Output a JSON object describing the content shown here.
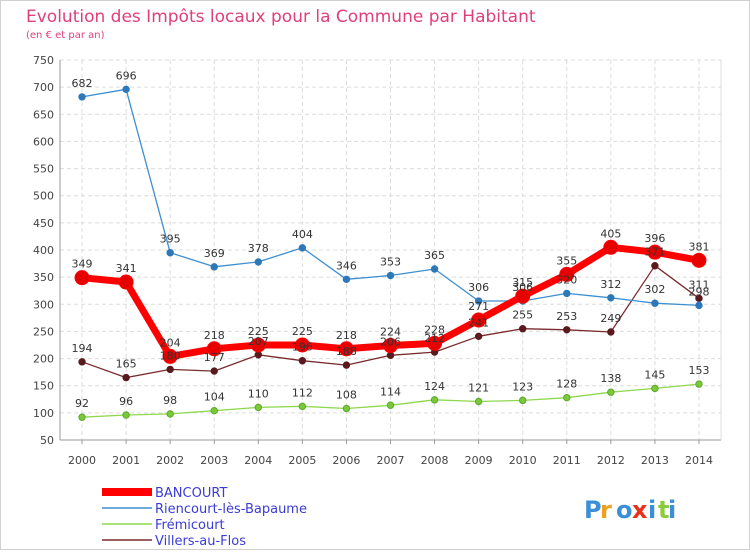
{
  "chart_data": {
    "type": "line",
    "title": "Evolution des Impôts locaux pour la Commune par Habitant",
    "subtitle": "(en € et par an)",
    "x": [
      "2000",
      "2001",
      "2002",
      "2003",
      "2004",
      "2005",
      "2006",
      "2007",
      "2008",
      "2009",
      "2010",
      "2011",
      "2012",
      "2013",
      "2014"
    ],
    "ylim": [
      50,
      750
    ],
    "yticks": [
      50,
      100,
      150,
      200,
      250,
      300,
      350,
      400,
      450,
      500,
      550,
      600,
      650,
      700,
      750
    ],
    "grid": true,
    "legend_position": "bottom-left",
    "series": [
      {
        "name": "BANCOURT",
        "color": "#ff0000",
        "values": [
          349,
          341,
          204,
          218,
          225,
          225,
          218,
          224,
          228,
          271,
          315,
          355,
          405,
          396,
          381
        ],
        "labels": [
          "349",
          "341",
          "204",
          "218",
          "225",
          "225",
          "218",
          "224",
          "228",
          "271",
          "315",
          "355",
          "405",
          "396",
          "381"
        ]
      },
      {
        "name": "Riencourt-lès-Bapaume",
        "color": "#3d8fd1",
        "values": [
          682,
          696,
          395,
          369,
          378,
          404,
          346,
          353,
          365,
          306,
          306,
          320,
          312,
          302,
          298
        ],
        "labels": [
          "682",
          "696",
          "395",
          "369",
          "378",
          "404",
          "346",
          "353",
          "365",
          "306",
          "306",
          "320",
          "312",
          "302",
          "298"
        ]
      },
      {
        "name": "Frémicourt",
        "color": "#8ed84e",
        "values": [
          92,
          96,
          98,
          104,
          110,
          112,
          108,
          114,
          124,
          121,
          123,
          128,
          138,
          145,
          153
        ],
        "labels": [
          "92",
          "96",
          "98",
          "104",
          "110",
          "112",
          "108",
          "114",
          "124",
          "121",
          "123",
          "128",
          "138",
          "145",
          "153"
        ]
      },
      {
        "name": "Villers-au-Flos",
        "color": "#7a2b2e",
        "values": [
          194,
          165,
          180,
          177,
          207,
          196,
          188,
          206,
          212,
          241,
          255,
          253,
          249,
          371,
          311
        ],
        "labels": [
          "194",
          "165",
          "180",
          "177",
          "207",
          "196",
          "188",
          "206",
          "212",
          "241",
          "255",
          "253",
          "249",
          "371",
          "311"
        ]
      }
    ],
    "logo_text": "Proxiti"
  }
}
